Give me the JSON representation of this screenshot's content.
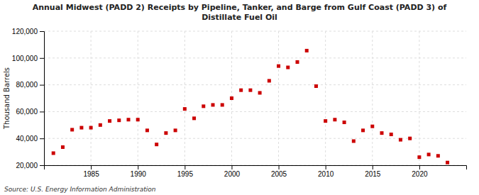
{
  "chart_data": {
    "type": "scatter",
    "title": "Annual Midwest (PADD 2) Receipts by Pipeline, Tanker, and Barge from Gulf Coast (PADD 3) of\nDistillate Fuel Oil",
    "ylabel": "Thousand Barrels",
    "annotations": [
      "Source: U.S. Energy Information Administration"
    ],
    "x": [
      1981,
      1982,
      1983,
      1984,
      1985,
      1986,
      1987,
      1988,
      1989,
      1990,
      1991,
      1992,
      1993,
      1994,
      1995,
      1996,
      1997,
      1998,
      1999,
      2000,
      2001,
      2002,
      2003,
      2004,
      2005,
      2006,
      2007,
      2008,
      2009,
      2010,
      2011,
      2012,
      2013,
      2014,
      2015,
      2016,
      2017,
      2018,
      2019,
      2020,
      2021,
      2022,
      2023
    ],
    "values": [
      29000,
      33500,
      46500,
      48000,
      48000,
      50000,
      53000,
      53500,
      54000,
      54000,
      46000,
      35500,
      44000,
      46000,
      62000,
      55000,
      64000,
      65000,
      65000,
      70000,
      76000,
      76000,
      74000,
      83000,
      94000,
      93000,
      97000,
      105500,
      79000,
      53000,
      54000,
      52000,
      38000,
      46000,
      49000,
      44000,
      43000,
      39000,
      40000,
      26000,
      28000,
      27000,
      22000
    ],
    "color": "#cc0000",
    "marker": "square",
    "xlim": [
      1980,
      2025
    ],
    "xticks": [
      1985,
      1990,
      1995,
      2000,
      2005,
      2010,
      2015,
      2020
    ],
    "ylim": [
      20000,
      120000
    ],
    "yticks": [
      {
        "value": 20000,
        "label": "20,000"
      },
      {
        "value": 40000,
        "label": "40,000"
      },
      {
        "value": 60000,
        "label": "60,000"
      },
      {
        "value": 80000,
        "label": "80,000"
      },
      {
        "value": 100000,
        "label": "100,000"
      },
      {
        "value": 120000,
        "label": "120,000"
      }
    ],
    "grid": true
  }
}
